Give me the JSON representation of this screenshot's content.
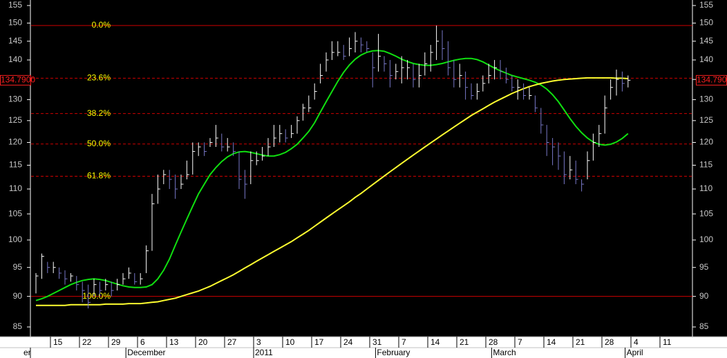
{
  "chart_data": {
    "type": "ohlc",
    "log_scale": true,
    "ylim": [
      85,
      155
    ],
    "yticks": [
      85,
      90,
      95,
      100,
      105,
      110,
      115,
      120,
      125,
      130,
      135,
      140,
      145,
      150,
      155
    ],
    "up_color": "#ffffff",
    "down_color": "#7878c8",
    "categories": [
      null,
      null,
      null,
      "15",
      null,
      null,
      null,
      null,
      "22",
      null,
      null,
      null,
      null,
      "29",
      null,
      null,
      null,
      null,
      "6",
      null,
      null,
      null,
      null,
      "13",
      null,
      null,
      null,
      null,
      "20",
      null,
      null,
      null,
      null,
      "27",
      null,
      null,
      null,
      null,
      "3",
      null,
      null,
      null,
      null,
      "10",
      null,
      null,
      null,
      null,
      "17",
      null,
      null,
      null,
      null,
      "24",
      null,
      null,
      null,
      null,
      "31",
      null,
      null,
      null,
      null,
      "7",
      null,
      null,
      null,
      null,
      "14",
      null,
      null,
      null,
      null,
      "21",
      null,
      null,
      null,
      null,
      "28",
      null,
      null,
      null,
      null,
      "7",
      null,
      null,
      null,
      null,
      "14",
      null,
      null,
      null,
      null,
      "21",
      null,
      null,
      null,
      null,
      "28",
      null,
      null,
      null,
      null,
      "4",
      null,
      null,
      null,
      null,
      "11",
      null,
      null,
      null,
      null
    ],
    "months": [
      "er",
      "December",
      "2011",
      "February",
      "March",
      "April"
    ],
    "high": [
      94,
      97.5,
      96,
      96,
      95,
      94.5,
      94,
      93.5,
      92.5,
      92,
      93,
      92.5,
      93,
      92.5,
      93,
      94,
      95,
      94,
      94,
      99,
      109,
      113,
      114,
      114,
      113,
      113,
      116,
      120,
      120,
      120,
      121,
      124,
      122,
      121,
      120,
      118,
      114,
      118,
      118,
      119,
      121,
      124,
      124,
      123,
      124,
      126,
      129,
      131,
      134,
      139,
      142,
      145,
      145,
      144,
      146,
      147.5,
      146,
      145,
      142,
      147,
      141,
      140,
      139,
      141,
      140,
      139,
      139,
      142,
      144,
      149.3,
      148,
      145,
      140,
      139,
      137,
      134,
      134,
      136,
      139,
      140,
      140,
      138,
      136,
      135,
      134,
      133,
      131,
      128,
      124,
      121,
      120,
      118,
      117,
      116,
      112,
      118,
      122,
      124,
      131,
      135,
      137.5,
      137,
      136,
      null,
      null,
      null,
      null,
      null,
      null,
      null,
      null,
      null,
      null
    ],
    "low": [
      90.5,
      93,
      94,
      94,
      93,
      92,
      92.5,
      91,
      89,
      88,
      90,
      90,
      91,
      90,
      91,
      92,
      93,
      92,
      92,
      94,
      98,
      107,
      111,
      110,
      108,
      110,
      112,
      113,
      117,
      117,
      119,
      119,
      118,
      118,
      117,
      110,
      108,
      111,
      115,
      116,
      117,
      119,
      120,
      120,
      121,
      122,
      125,
      127,
      130,
      134,
      137,
      140,
      141,
      140,
      141,
      142,
      142,
      142,
      133,
      137,
      137,
      133,
      135,
      134,
      135,
      133,
      133,
      136,
      137,
      140,
      140,
      136,
      133,
      133,
      130,
      130,
      130,
      132,
      134,
      135,
      135,
      134,
      132,
      130,
      130,
      130,
      127,
      122,
      117,
      115,
      114,
      111,
      112,
      111,
      109.5,
      112,
      116,
      119,
      122,
      130,
      131,
      132,
      133,
      null,
      null,
      null,
      null,
      null,
      null,
      null,
      null,
      null,
      null
    ],
    "close": [
      93.5,
      97,
      95,
      95,
      94,
      93,
      93.5,
      92,
      91,
      89,
      92,
      91,
      92,
      91,
      92,
      93,
      94,
      92.5,
      93,
      98,
      107,
      110,
      113,
      112,
      110,
      111,
      113,
      118,
      119,
      118,
      120,
      121,
      119,
      119,
      118,
      112,
      111,
      116,
      116,
      117,
      119,
      121,
      122,
      121,
      122,
      125,
      128,
      128,
      132,
      136,
      140,
      142,
      142,
      141,
      143,
      145,
      144,
      143,
      138,
      141,
      139,
      136,
      137,
      138,
      138,
      135,
      136,
      139,
      142,
      145,
      143,
      138,
      135,
      136,
      133,
      131,
      132,
      134,
      136,
      138,
      137,
      135,
      133,
      133,
      131,
      131,
      128,
      124,
      120,
      119,
      117,
      113,
      114,
      112,
      111,
      116,
      120,
      122,
      128,
      133,
      135,
      134,
      134.79,
      null,
      null,
      null,
      null,
      null,
      null,
      null,
      null,
      null,
      null
    ],
    "ma": [
      {
        "color": "#10e010",
        "values": [
          89.3,
          89.6,
          90.0,
          90.5,
          91.0,
          91.5,
          92.0,
          92.4,
          92.7,
          92.9,
          93.0,
          92.9,
          92.7,
          92.4,
          92.1,
          91.8,
          91.6,
          91.5,
          91.5,
          91.6,
          92.0,
          93.0,
          94.5,
          96.5,
          99.0,
          101.5,
          104.0,
          106.5,
          109.0,
          111.0,
          113.0,
          114.5,
          115.8,
          116.8,
          117.5,
          117.9,
          118.0,
          117.8,
          117.5,
          117.2,
          117.0,
          117.0,
          117.3,
          117.8,
          118.6,
          119.6,
          121.0,
          122.5,
          124.5,
          127.0,
          129.5,
          132.0,
          134.5,
          136.8,
          138.7,
          140.2,
          141.3,
          142.0,
          142.4,
          142.5,
          142.3,
          141.7,
          141.0,
          140.2,
          139.6,
          139.1,
          138.8,
          138.6,
          138.6,
          138.8,
          139.1,
          139.5,
          139.9,
          140.2,
          140.4,
          140.4,
          140.1,
          139.5,
          138.7,
          137.9,
          137.2,
          136.6,
          136.0,
          135.6,
          135.2,
          134.8,
          134.3,
          133.6,
          132.6,
          131.2,
          129.5,
          127.5,
          125.5,
          123.7,
          122.2,
          121.0,
          120.1,
          119.6,
          119.4,
          119.6,
          120.1,
          120.9,
          122.0,
          null,
          null,
          null,
          null,
          null,
          null,
          null,
          null,
          null,
          null
        ]
      },
      {
        "color": "#ffff30",
        "values": [
          88.5,
          88.5,
          88.5,
          88.5,
          88.5,
          88.5,
          88.6,
          88.6,
          88.6,
          88.6,
          88.6,
          88.6,
          88.7,
          88.7,
          88.7,
          88.7,
          88.8,
          88.8,
          88.8,
          88.9,
          89.0,
          89.1,
          89.3,
          89.5,
          89.7,
          90.0,
          90.3,
          90.6,
          90.9,
          91.3,
          91.7,
          92.2,
          92.7,
          93.2,
          93.7,
          94.3,
          94.9,
          95.5,
          96.1,
          96.7,
          97.3,
          97.9,
          98.5,
          99.1,
          99.7,
          100.4,
          101.1,
          101.8,
          102.6,
          103.4,
          104.2,
          105.0,
          105.8,
          106.6,
          107.4,
          108.3,
          109.1,
          110.0,
          110.9,
          111.8,
          112.7,
          113.6,
          114.5,
          115.4,
          116.3,
          117.2,
          118.1,
          119.0,
          119.9,
          120.8,
          121.7,
          122.6,
          123.5,
          124.4,
          125.3,
          126.2,
          127.0,
          127.8,
          128.6,
          129.4,
          130.1,
          130.8,
          131.5,
          132.1,
          132.7,
          133.2,
          133.6,
          134.0,
          134.3,
          134.6,
          134.8,
          135.0,
          135.1,
          135.2,
          135.3,
          135.4,
          135.4,
          135.4,
          135.4,
          135.4,
          135.3,
          135.3,
          135.2,
          null,
          null,
          null,
          null,
          null,
          null,
          null,
          null,
          null,
          null
        ]
      }
    ],
    "fib_levels": [
      {
        "label": "0.0%",
        "value": 149.3
      },
      {
        "label": "23.6%",
        "value": 135.3
      },
      {
        "label": "38.2%",
        "value": 126.65
      },
      {
        "label": "50.0%",
        "value": 119.65
      },
      {
        "label": "61.8%",
        "value": 112.65
      },
      {
        "label": "100.0%",
        "value": 90.0
      }
    ],
    "fib_color": "#d00000",
    "fib_label_color": "#ffff00",
    "last_price": {
      "value": 134.79,
      "label": "134.7900"
    },
    "last_price_color": "#ff2020"
  }
}
